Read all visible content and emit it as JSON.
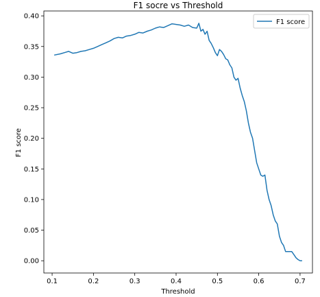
{
  "chart_data": {
    "type": "line",
    "title": "F1 socre vs Threshold",
    "xlabel": "Threshold",
    "ylabel": "F1 score",
    "xlim": [
      0.08,
      0.73
    ],
    "ylim": [
      -0.02,
      0.408
    ],
    "xticks": [
      0.1,
      0.2,
      0.3,
      0.4,
      0.5,
      0.6,
      0.7
    ],
    "xtick_labels": [
      "0.1",
      "0.2",
      "0.3",
      "0.4",
      "0.5",
      "0.6",
      "0.7"
    ],
    "yticks": [
      0.0,
      0.05,
      0.1,
      0.15,
      0.2,
      0.25,
      0.3,
      0.35,
      0.4
    ],
    "ytick_labels": [
      "0.00",
      "0.05",
      "0.10",
      "0.15",
      "0.20",
      "0.25",
      "0.30",
      "0.35",
      "0.40"
    ],
    "grid": false,
    "legend_position": "top-right",
    "series": [
      {
        "name": "F1 score",
        "color": "#1f77b4",
        "x": [
          0.105,
          0.12,
          0.13,
          0.14,
          0.15,
          0.16,
          0.17,
          0.18,
          0.19,
          0.2,
          0.21,
          0.22,
          0.23,
          0.24,
          0.25,
          0.26,
          0.27,
          0.28,
          0.29,
          0.3,
          0.31,
          0.32,
          0.33,
          0.34,
          0.35,
          0.36,
          0.37,
          0.38,
          0.39,
          0.4,
          0.41,
          0.42,
          0.43,
          0.44,
          0.45,
          0.455,
          0.46,
          0.465,
          0.47,
          0.475,
          0.48,
          0.485,
          0.49,
          0.495,
          0.5,
          0.505,
          0.51,
          0.515,
          0.52,
          0.525,
          0.53,
          0.535,
          0.54,
          0.545,
          0.55,
          0.555,
          0.56,
          0.565,
          0.57,
          0.575,
          0.58,
          0.585,
          0.59,
          0.595,
          0.6,
          0.605,
          0.61,
          0.615,
          0.62,
          0.625,
          0.63,
          0.635,
          0.64,
          0.645,
          0.65,
          0.655,
          0.66,
          0.665,
          0.67,
          0.675,
          0.68,
          0.685,
          0.69,
          0.695,
          0.7,
          0.705
        ],
        "y": [
          0.336,
          0.338,
          0.34,
          0.342,
          0.339,
          0.34,
          0.342,
          0.343,
          0.345,
          0.347,
          0.35,
          0.353,
          0.356,
          0.359,
          0.363,
          0.365,
          0.364,
          0.367,
          0.368,
          0.37,
          0.373,
          0.372,
          0.375,
          0.377,
          0.38,
          0.382,
          0.381,
          0.384,
          0.387,
          0.386,
          0.385,
          0.383,
          0.385,
          0.381,
          0.38,
          0.388,
          0.375,
          0.378,
          0.37,
          0.375,
          0.36,
          0.355,
          0.348,
          0.34,
          0.335,
          0.345,
          0.342,
          0.337,
          0.33,
          0.328,
          0.32,
          0.315,
          0.3,
          0.295,
          0.298,
          0.282,
          0.27,
          0.26,
          0.245,
          0.225,
          0.21,
          0.2,
          0.18,
          0.16,
          0.15,
          0.14,
          0.138,
          0.14,
          0.115,
          0.1,
          0.09,
          0.075,
          0.065,
          0.06,
          0.04,
          0.03,
          0.025,
          0.015,
          0.015,
          0.015,
          0.015,
          0.01,
          0.005,
          0.002,
          0.0,
          0.0
        ]
      }
    ]
  }
}
